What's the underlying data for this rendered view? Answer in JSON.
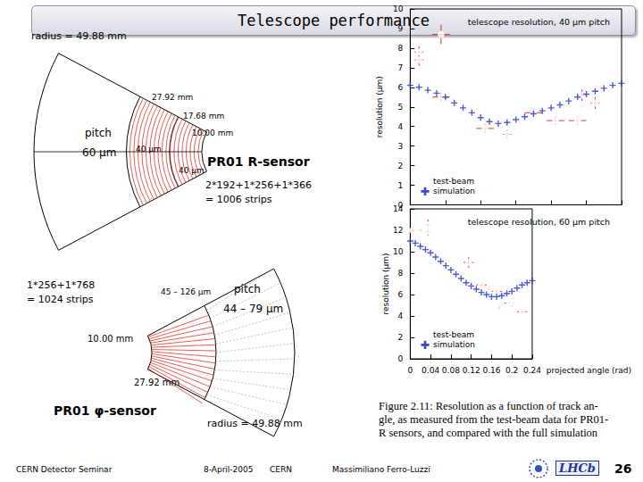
{
  "slide": {
    "title": "Telescope performance",
    "r_sensor": {
      "radius": "radius = 49.88 mm",
      "r1": "27.92 mm",
      "r2": "17.68 mm",
      "r3": "10.00 mm",
      "pitch": "pitch",
      "pitch_outer": "60 µm",
      "pitch_mid": "40 µm",
      "pitch_inner": "40 µm",
      "name": "PR01 R-sensor",
      "formula": "2*192+1*256+1*366",
      "strips": "= 1006 strips"
    },
    "phi_sensor": {
      "formula": "1*256+1*768",
      "strips": "= 1024 strips",
      "pitch_inner": "45 – 126 µm",
      "pitch": "pitch",
      "pitch_outer": "44 – 79 µm",
      "r_inner": "10.00 mm",
      "r_mid": "27.92 mm",
      "name": "PR01 φ-sensor",
      "radius": "radius = 49.88 mm"
    },
    "caption_lines": [
      "Figure 2.11:  Resolution as a function of track an-",
      "gle, as measured from the test-beam data for PR01-",
      "R sensors, and compared with the full simulation"
    ],
    "footer": {
      "left": "CERN Detector Seminar",
      "date": "8-April-2005",
      "place": "CERN",
      "author": "Massimiliano Ferro-Luzzi",
      "logo": "LHCb",
      "page": "26"
    }
  },
  "chart_data": [
    {
      "type": "scatter",
      "title": "telescope resolution, 40 µm pitch",
      "y_label": "resolution (µm)",
      "xlim": [
        0,
        0.24
      ],
      "xticks": [
        0,
        0.04,
        0.08,
        0.12,
        0.16,
        0.2,
        0.24
      ],
      "ylim": [
        0,
        10
      ],
      "yticks": [
        0,
        1,
        2,
        3,
        4,
        5,
        6,
        7,
        8,
        9,
        10
      ],
      "grid": false,
      "legend": "lower left",
      "tick_labels": "y",
      "series": [
        {
          "name": "test-beam",
          "color": "#e8332a",
          "marker": "circle",
          "x": [
            0.01,
            0.01,
            0.035,
            0.035,
            0.085,
            0.11,
            0.14,
            0.165,
            0.19,
            0.195,
            0.21
          ],
          "values": [
            7.8,
            7.4,
            8.7,
            5.5,
            3.9,
            3.6,
            4.7,
            4.3,
            4.3,
            5.6,
            5.2
          ],
          "y_errors": [
            0.3,
            0.3,
            0.5,
            0.2,
            0.2,
            0.2,
            0.2,
            0.2,
            0.2,
            0.3,
            0.3
          ],
          "x_errors": [
            0.005,
            0.005,
            0.01,
            0.01,
            0.01,
            0.005,
            0.01,
            0.01,
            0.01,
            0.005,
            0.005
          ]
        },
        {
          "name": "simulation",
          "color": "#2233cc",
          "marker": "cross",
          "x": [
            0,
            0.01,
            0.02,
            0.03,
            0.04,
            0.05,
            0.06,
            0.07,
            0.08,
            0.09,
            0.1,
            0.11,
            0.12,
            0.13,
            0.14,
            0.15,
            0.16,
            0.17,
            0.18,
            0.19,
            0.2,
            0.21,
            0.22,
            0.23,
            0.24
          ],
          "values": [
            6.1,
            6.0,
            5.85,
            5.7,
            5.5,
            5.2,
            4.95,
            4.7,
            4.45,
            4.25,
            4.15,
            4.2,
            4.35,
            4.5,
            4.65,
            4.8,
            4.95,
            5.1,
            5.3,
            5.5,
            5.65,
            5.8,
            5.95,
            6.1,
            6.2
          ]
        }
      ]
    },
    {
      "type": "scatter",
      "title": "telescope resolution, 60 µm pitch",
      "y_label": "resolution (µm)",
      "x_label": "projected angle (rad)",
      "xlim": [
        0,
        0.24
      ],
      "xticks": [
        0,
        0.04,
        0.08,
        0.12,
        0.16,
        0.2,
        0.24
      ],
      "ylim": [
        0,
        14
      ],
      "yticks": [
        0,
        2,
        4,
        6,
        8,
        10,
        12,
        14
      ],
      "grid": false,
      "legend": "lower left",
      "series": [
        {
          "name": "test-beam",
          "color": "#e8332a",
          "marker": "circle",
          "x": [
            0.005,
            0.02,
            0.035,
            0.035,
            0.115,
            0.14,
            0.155,
            0.17,
            0.175,
            0.195,
            0.2,
            0.22
          ],
          "values": [
            12.0,
            12.0,
            12.5,
            11.9,
            9.0,
            6.9,
            6.5,
            6.3,
            4.8,
            5.2,
            5.0,
            4.4
          ],
          "y_errors": [
            0.3,
            0.3,
            0.5,
            0.4,
            0.5,
            0.3,
            0.3,
            0.3,
            0.3,
            0.2,
            0.2,
            0.2
          ],
          "x_errors": [
            0.005,
            0.005,
            0.005,
            0.005,
            0.01,
            0.01,
            0.005,
            0.01,
            0.005,
            0.01,
            0.005,
            0.01
          ]
        },
        {
          "name": "simulation",
          "color": "#2233cc",
          "marker": "cross",
          "x": [
            0,
            0.01,
            0.02,
            0.03,
            0.04,
            0.05,
            0.06,
            0.07,
            0.08,
            0.09,
            0.1,
            0.11,
            0.12,
            0.13,
            0.14,
            0.15,
            0.16,
            0.17,
            0.18,
            0.19,
            0.2,
            0.21,
            0.22,
            0.23,
            0.24
          ],
          "values": [
            11.0,
            10.8,
            10.5,
            10.2,
            9.9,
            9.5,
            9.1,
            8.7,
            8.3,
            7.9,
            7.5,
            7.1,
            6.8,
            6.5,
            6.2,
            6.0,
            5.8,
            5.8,
            5.9,
            6.1,
            6.3,
            6.6,
            6.9,
            7.1,
            7.3
          ]
        }
      ]
    }
  ]
}
